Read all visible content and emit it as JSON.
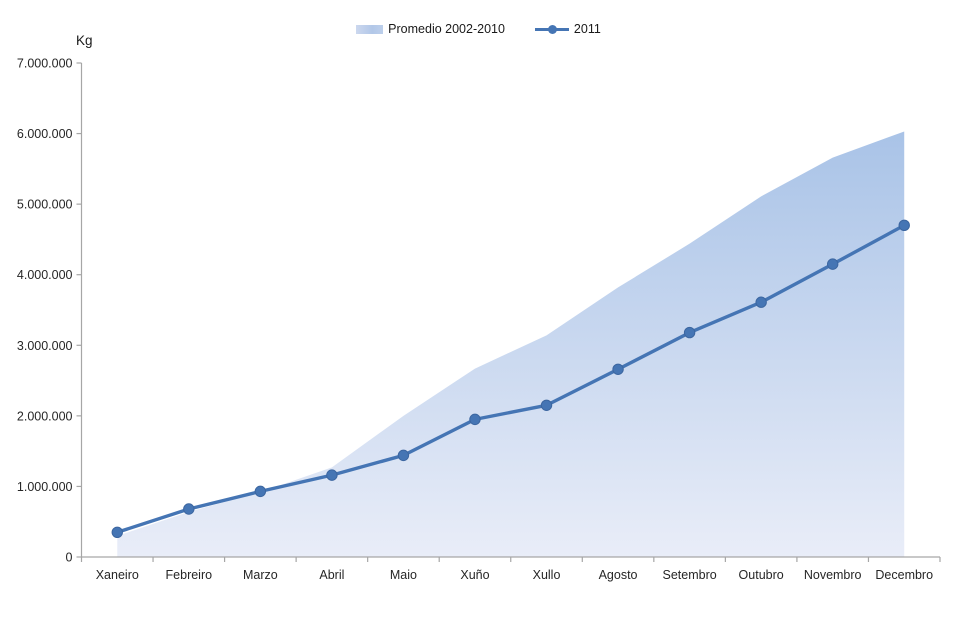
{
  "chart_data": {
    "type": "area",
    "combo_types": [
      "area",
      "line"
    ],
    "title": "",
    "xlabel": "",
    "ylabel": "Kg",
    "categories": [
      "Xaneiro",
      "Febreiro",
      "Marzo",
      "Abril",
      "Maio",
      "Xuño",
      "Xullo",
      "Agosto",
      "Setembro",
      "Outubro",
      "Novembro",
      "Decembro"
    ],
    "series": [
      {
        "name": "Promedio 2002-2010",
        "type": "area",
        "fill_top": "#a9c3e7",
        "fill_bottom": "#e9edf8",
        "values": [
          300000,
          640000,
          920000,
          1270000,
          2000000,
          2670000,
          3140000,
          3820000,
          4440000,
          5110000,
          5660000,
          6030000
        ]
      },
      {
        "name": "2011",
        "type": "line",
        "color": "#4575b4",
        "marker_edge": "#3c66a0",
        "values": [
          350000,
          680000,
          930000,
          1160000,
          1440000,
          1950000,
          2150000,
          2660000,
          3180000,
          3610000,
          4150000,
          4700000
        ]
      }
    ],
    "y_axis": {
      "min": 0,
      "max": 7000000,
      "step": 1000000,
      "tick_labels": [
        "0",
        "1.000.000",
        "2.000.000",
        "3.000.000",
        "4.000.000",
        "5.000.000",
        "6.000.000",
        "7.000.000"
      ]
    },
    "grid": false,
    "legend_position": "top-center",
    "axis_color": "#a6a6a6",
    "text_color": "#262626"
  }
}
